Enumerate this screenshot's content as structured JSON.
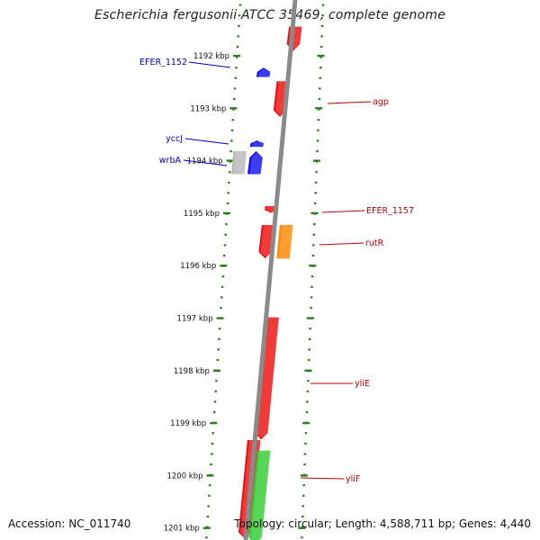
{
  "title": "Escherichia fergusonii ATCC 35469, complete genome",
  "footer": {
    "accession": "Accession: NC_011740",
    "summary": "Topology: circular; Length: 4,588,711 bp; Genes: 4,440"
  },
  "colors": {
    "backbone": "#8a8a8a",
    "tick": "#2e7d1e",
    "label_forward": "#0000bb",
    "label_reverse": "#bb0000",
    "gene_red": "#ee1111",
    "gene_blue": "#1111ee",
    "gene_orange": "#ff8800",
    "gene_grey": "#b8b8b8",
    "gene_green": "#33cc33"
  },
  "ticks": [
    {
      "label": "1192 kbp"
    },
    {
      "label": "1193 kbp"
    },
    {
      "label": "1194 kbp"
    },
    {
      "label": "1195 kbp"
    },
    {
      "label": "1196 kbp"
    },
    {
      "label": "1197 kbp"
    },
    {
      "label": "1198 kbp"
    },
    {
      "label": "1199 kbp"
    },
    {
      "label": "1200 kbp"
    },
    {
      "label": "1201 kbp"
    }
  ],
  "genes": [
    {
      "name": "",
      "strand": "reverse",
      "color": "gene_red",
      "start_kbp": 1191.45,
      "end_kbp": 1191.9
    },
    {
      "name": "EFER_1152",
      "strand": "forward",
      "color": "gene_blue",
      "start_kbp": 1192.23,
      "end_kbp": 1192.4
    },
    {
      "name": "agp",
      "strand": "reverse",
      "color": "gene_red",
      "start_kbp": 1192.49,
      "end_kbp": 1193.16
    },
    {
      "name": "yccJ",
      "strand": "forward",
      "color": "gene_blue",
      "start_kbp": 1193.62,
      "end_kbp": 1193.73
    },
    {
      "name": "wrbA",
      "strand": "forward",
      "color": "gene_blue",
      "start_kbp": 1193.82,
      "end_kbp": 1194.25
    },
    {
      "name": "",
      "strand": "none",
      "color": "gene_grey",
      "start_kbp": 1193.82,
      "end_kbp": 1194.25
    },
    {
      "name": "EFER_1157",
      "strand": "reverse",
      "color": "gene_red",
      "start_kbp": 1194.87,
      "end_kbp": 1194.99
    },
    {
      "name": "",
      "strand": "reverse",
      "color": "gene_red",
      "start_kbp": 1195.23,
      "end_kbp": 1195.86
    },
    {
      "name": "rutR",
      "strand": "none",
      "color": "gene_orange",
      "start_kbp": 1195.23,
      "end_kbp": 1195.86
    },
    {
      "name": "yliE",
      "strand": "reverse",
      "color": "gene_red",
      "start_kbp": 1196.99,
      "end_kbp": 1199.31
    },
    {
      "name": "",
      "strand": "reverse",
      "color": "gene_red",
      "start_kbp": 1199.33,
      "end_kbp": 1201.2
    },
    {
      "name": "yliF",
      "strand": "reverse",
      "color": "gene_green",
      "start_kbp": 1199.53,
      "end_kbp": 1201.3
    }
  ]
}
